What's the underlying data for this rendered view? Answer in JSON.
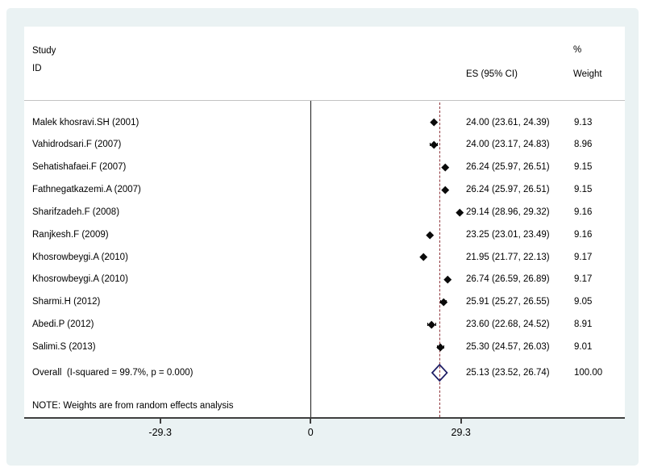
{
  "header": {
    "study_line1": "Study",
    "study_line2": "ID",
    "es_column": "ES (95% CI)",
    "percent_sign": "%",
    "weight_column": "Weight"
  },
  "note": "NOTE: Weights are from random effects analysis",
  "chart_data": {
    "type": "forest",
    "title": "",
    "xlabel": "",
    "x_axis": {
      "ticks": [
        -29.3,
        0,
        29.3
      ],
      "tick_labels": [
        "-29.3",
        "0",
        "29.3"
      ],
      "range": [
        -29.3,
        29.3
      ]
    },
    "zero_line_x": 0,
    "overall_dashed_line_x": 25.13,
    "studies": [
      {
        "label": "Malek khosravi.SH (2001)",
        "es": 24.0,
        "ci_low": 23.61,
        "ci_high": 24.39,
        "es_text": "24.00 (23.61, 24.39)",
        "weight": 9.13,
        "weight_text": "9.13"
      },
      {
        "label": "Vahidrodsari.F (2007)",
        "es": 24.0,
        "ci_low": 23.17,
        "ci_high": 24.83,
        "es_text": "24.00 (23.17, 24.83)",
        "weight": 8.96,
        "weight_text": "8.96"
      },
      {
        "label": "Sehatishafaei.F (2007)",
        "es": 26.24,
        "ci_low": 25.97,
        "ci_high": 26.51,
        "es_text": "26.24 (25.97, 26.51)",
        "weight": 9.15,
        "weight_text": "9.15"
      },
      {
        "label": "Fathnegatkazemi.A (2007)",
        "es": 26.24,
        "ci_low": 25.97,
        "ci_high": 26.51,
        "es_text": "26.24 (25.97, 26.51)",
        "weight": 9.15,
        "weight_text": "9.15"
      },
      {
        "label": "Sharifzadeh.F (2008)",
        "es": 29.14,
        "ci_low": 28.96,
        "ci_high": 29.32,
        "es_text": "29.14 (28.96, 29.32)",
        "weight": 9.16,
        "weight_text": "9.16"
      },
      {
        "label": "Ranjkesh.F (2009)",
        "es": 23.25,
        "ci_low": 23.01,
        "ci_high": 23.49,
        "es_text": "23.25 (23.01, 23.49)",
        "weight": 9.16,
        "weight_text": "9.16"
      },
      {
        "label": "Khosrowbeygi.A (2010)",
        "es": 21.95,
        "ci_low": 21.77,
        "ci_high": 22.13,
        "es_text": "21.95 (21.77, 22.13)",
        "weight": 9.17,
        "weight_text": "9.17"
      },
      {
        "label": "Khosrowbeygi.A (2010)",
        "es": 26.74,
        "ci_low": 26.59,
        "ci_high": 26.89,
        "es_text": "26.74 (26.59, 26.89)",
        "weight": 9.17,
        "weight_text": "9.17"
      },
      {
        "label": "Sharmi.H (2012)",
        "es": 25.91,
        "ci_low": 25.27,
        "ci_high": 26.55,
        "es_text": "25.91 (25.27, 26.55)",
        "weight": 9.05,
        "weight_text": "9.05"
      },
      {
        "label": "Abedi.P (2012)",
        "es": 23.6,
        "ci_low": 22.68,
        "ci_high": 24.52,
        "es_text": "23.60 (22.68, 24.52)",
        "weight": 8.91,
        "weight_text": "8.91"
      },
      {
        "label": "Salimi.S (2013)",
        "es": 25.3,
        "ci_low": 24.57,
        "ci_high": 26.03,
        "es_text": "25.30 (24.57, 26.03)",
        "weight": 9.01,
        "weight_text": "9.01"
      }
    ],
    "overall": {
      "label": "Overall  (I-squared = 99.7%, p = 0.000)",
      "es": 25.13,
      "ci_low": 23.52,
      "ci_high": 26.74,
      "es_text": "25.13 (23.52, 26.74)",
      "weight": 100.0,
      "weight_text": "100.00"
    },
    "colors": {
      "graph_background": "#eaf2f3",
      "plot_background": "#ffffff",
      "dashed_line": "#90353b",
      "overall_diamond": "#1b1b64",
      "axis": "#3f3f3f",
      "marker": "#0a0a0a",
      "zero_line": "#1a1a1a",
      "separator": "#c2c2c2",
      "text": "#000000"
    }
  }
}
